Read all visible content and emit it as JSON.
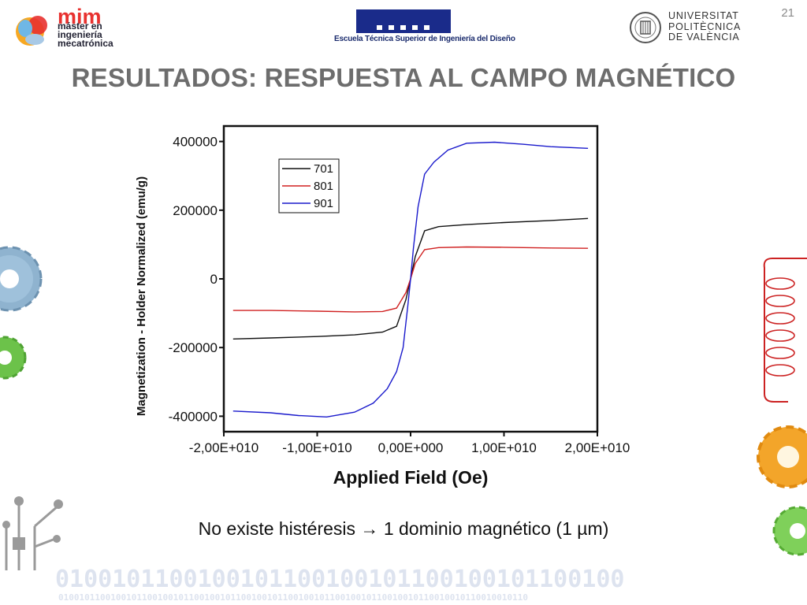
{
  "slide": {
    "number": "21",
    "title": "RESULTADOS: RESPUESTA AL CAMPO MAGNÉTICO",
    "subtitle": "No existe histéresis → 1 dominio magnético (1 µm)"
  },
  "logos": {
    "mim": {
      "big": "mim",
      "lines": [
        "máster en",
        "ingeniería",
        "mecatrónica"
      ]
    },
    "etsid": {
      "caption": "Escuela Técnica Superior de Ingeniería del Diseño"
    },
    "upv": {
      "lines": [
        "UNIVERSITAT",
        "POLITÈCNICA",
        "DE VALÈNCIA"
      ]
    }
  },
  "decor": {
    "binary_big": "0100101100100101100100101100100101100100",
    "binary_small": "010010110010010110010010110010010110010010110010010110010010110010010110010010110010010110",
    "colors": {
      "gear_blue": "#8fb3cf",
      "gear_green": "#6cc24a",
      "gear_orange": "#f3a52a",
      "coil_red": "#cc2222"
    }
  },
  "chart_data": {
    "type": "line",
    "xlabel": "Applied Field (Oe)",
    "ylabel": "Magnetization - Holder Normalized (emu/g)",
    "xlim": [
      -20000000000,
      20000000000
    ],
    "ylim": [
      -445000,
      445000
    ],
    "xticks": [
      "-2,00E+010",
      "-1,00E+010",
      "0,00E+000",
      "1,00E+010",
      "2,00E+010"
    ],
    "yticks": [
      "400000",
      "200000",
      "0",
      "-200000",
      "-400000"
    ],
    "legend_position": "top-left",
    "series": [
      {
        "name": "701",
        "color": "#111111",
        "x": [
          -19000000000,
          -15000000000,
          -10000000000,
          -6000000000,
          -3000000000,
          -1500000000,
          -500000000,
          0,
          500000000,
          1500000000,
          3000000000,
          6000000000,
          10000000000,
          15000000000,
          19000000000
        ],
        "y": [
          -175000,
          -172000,
          -168000,
          -163000,
          -155000,
          -138000,
          -60000,
          0,
          65000,
          140000,
          152000,
          158000,
          164000,
          170000,
          176000
        ]
      },
      {
        "name": "801",
        "color": "#d02020",
        "x": [
          -19000000000,
          -15000000000,
          -10000000000,
          -6000000000,
          -3000000000,
          -1500000000,
          -500000000,
          0,
          500000000,
          1500000000,
          3000000000,
          6000000000,
          10000000000,
          15000000000,
          19000000000
        ],
        "y": [
          -92000,
          -92000,
          -94000,
          -96000,
          -95000,
          -85000,
          -40000,
          0,
          45000,
          85000,
          91000,
          93000,
          92000,
          90000,
          89000
        ]
      },
      {
        "name": "901",
        "color": "#1a1acc",
        "x": [
          -19000000000,
          -15000000000,
          -12000000000,
          -9000000000,
          -6000000000,
          -4000000000,
          -2500000000,
          -1500000000,
          -800000000,
          -300000000,
          0,
          300000000,
          800000000,
          1500000000,
          2500000000,
          4000000000,
          6000000000,
          9000000000,
          12000000000,
          15000000000,
          19000000000
        ],
        "y": [
          -385000,
          -390000,
          -398000,
          -402000,
          -388000,
          -362000,
          -320000,
          -270000,
          -200000,
          -80000,
          0,
          90000,
          210000,
          305000,
          340000,
          375000,
          395000,
          398000,
          392000,
          385000,
          380000
        ]
      }
    ]
  }
}
